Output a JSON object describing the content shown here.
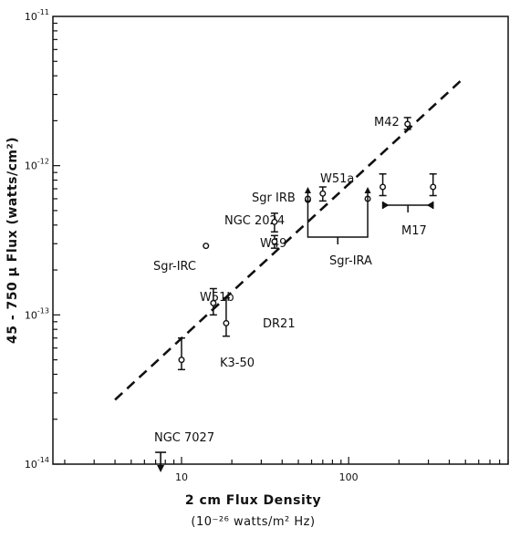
{
  "chart_data": {
    "type": "scatter",
    "xlabel": "2 cm Flux Density",
    "xlabel_units": "(10⁻²⁶ watts/m² Hz)",
    "ylabel": "45 - 750 μ  Flux  (watts/cm²)",
    "xscale": "log",
    "yscale": "log",
    "xlim": [
      1.7,
      900
    ],
    "ylim": [
      1e-14,
      1e-11
    ],
    "x_tick_labels": [
      {
        "value": 10,
        "label": "10"
      },
      {
        "value": 100,
        "label": "100"
      }
    ],
    "y_tick_labels": [
      {
        "value": 1e-11,
        "base": "10",
        "exp": "-11"
      },
      {
        "value": 1e-12,
        "base": "10",
        "exp": "-12"
      },
      {
        "value": 1e-13,
        "base": "10",
        "exp": "-13"
      },
      {
        "value": 1e-14,
        "base": "10",
        "exp": "-14"
      }
    ],
    "fit_line": {
      "style": "dashed",
      "points": [
        [
          4,
          2.7e-14
        ],
        [
          480,
          3.8e-12
        ]
      ]
    },
    "points": [
      {
        "name": "M42",
        "x": 225,
        "y": 1.9e-12,
        "yerr": [
          1.75e-12,
          2.1e-12
        ]
      },
      {
        "name": "W51a",
        "x": 70,
        "y": 6.5e-13,
        "yerr": [
          5.8e-13,
          7.2e-13
        ]
      },
      {
        "name": "Sgr IRB",
        "x": 57,
        "y": 5.9e-13
      },
      {
        "name": "NGC 2024",
        "x": 36,
        "y": 4.2e-13,
        "yerr": [
          3.6e-13,
          4.8e-13
        ]
      },
      {
        "name": "W49",
        "x": 36,
        "y": 3.1e-13,
        "yerr": [
          2.8e-13,
          3.4e-13
        ]
      },
      {
        "name": "Sgr-IRC",
        "x": 14,
        "y": 2.9e-13
      },
      {
        "name": "W51b",
        "x": 15.5,
        "y": 1.2e-13,
        "yerr": [
          1e-13,
          1.5e-13
        ]
      },
      {
        "name": "DR21",
        "x": 18.5,
        "y": 8.8e-14,
        "yerr": [
          7.2e-14,
          1.3e-13
        ]
      },
      {
        "name": "K3-50",
        "x": 10,
        "y": 5e-14,
        "yerr": [
          4.3e-14,
          7e-14
        ]
      },
      {
        "name": "Sgr-IRA",
        "x": 57,
        "y": 6e-13,
        "arrow": "up"
      },
      {
        "name": "Sgr-IRA",
        "x": 130,
        "y": 6e-13,
        "arrow": "up"
      },
      {
        "name": "M17",
        "x": 160,
        "y": 7.2e-13,
        "yerr": [
          6.3e-13,
          8.8e-13
        ]
      },
      {
        "name": "M17",
        "x": 320,
        "y": 7.2e-13,
        "yerr": [
          6.3e-13,
          8.8e-13
        ]
      },
      {
        "name": "NGC 7027",
        "x": 7.5,
        "y": 1.2e-14,
        "upper_limit": true
      }
    ],
    "labels": {
      "M42": "M42",
      "W51a": "W51a",
      "SgrIRB": "Sgr IRB",
      "NGC2024": "NGC 2024",
      "W49": "W49",
      "SgrIRC": "Sgr-IRC",
      "W51b": "W51b",
      "DR21": "DR21",
      "K350": "K3-50",
      "SgrIRA": "Sgr-IRA",
      "M17": "M17",
      "NGC7027": "NGC 7027"
    }
  }
}
